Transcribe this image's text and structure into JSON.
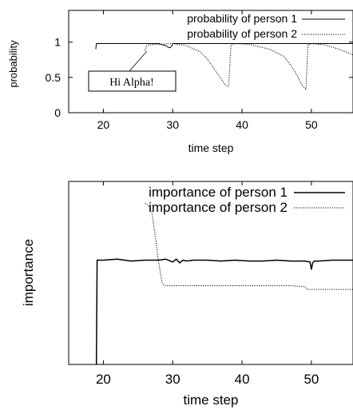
{
  "chart_data": [
    {
      "type": "line",
      "xlabel": "time step",
      "ylabel": "probability",
      "xlim": [
        15,
        56
      ],
      "ylim": [
        0,
        1.45
      ],
      "xticks": [
        "20",
        "30",
        "40",
        "50"
      ],
      "yticks": [
        "0",
        "0.5",
        "1"
      ],
      "legend_position": "top-right",
      "annotation": "Hi Alpha!",
      "series": [
        {
          "name": "probability of person 1",
          "style": "solid",
          "x": [
            18.9,
            19.0,
            28.0,
            28.6,
            29.0,
            29.3,
            29.6,
            29.9,
            30.0,
            56.0
          ],
          "y": [
            0.9,
            0.98,
            0.98,
            0.96,
            0.95,
            0.93,
            0.92,
            0.95,
            0.98,
            0.98
          ]
        },
        {
          "name": "probability of person 2",
          "style": "dotted",
          "x": [
            26.0,
            26.3,
            30.0,
            32.0,
            34.0,
            35.0,
            36.0,
            37.0,
            37.6,
            38.0,
            38.1,
            38.4,
            39.0,
            41.0,
            44.0,
            46.0,
            47.0,
            48.0,
            48.6,
            49.0,
            49.2,
            49.5,
            50.0,
            52.0,
            54.0,
            56.0
          ],
          "y": [
            0.88,
            0.96,
            0.98,
            0.95,
            0.86,
            0.76,
            0.62,
            0.48,
            0.39,
            0.37,
            0.42,
            0.96,
            0.98,
            0.97,
            0.9,
            0.8,
            0.68,
            0.52,
            0.4,
            0.35,
            0.33,
            0.96,
            0.98,
            0.96,
            0.9,
            0.82
          ]
        }
      ]
    },
    {
      "type": "line",
      "xlabel": "time step",
      "ylabel": "importance",
      "xlim": [
        15,
        56
      ],
      "ylim": [
        0,
        1
      ],
      "xticks": [
        "20",
        "30",
        "40",
        "50"
      ],
      "yticks": [],
      "legend_position": "top-right",
      "series": [
        {
          "name": "importance of person 1",
          "style": "solid",
          "x": [
            19.0,
            19.1,
            20.0,
            22.0,
            24.0,
            26.0,
            28.0,
            29.0,
            30.0,
            30.5,
            31.0,
            31.5,
            32.0,
            33.0,
            35.0,
            37.0,
            39.0,
            41.0,
            43.0,
            45.0,
            47.0,
            49.0,
            49.8,
            50.0,
            50.2,
            50.4,
            51.0,
            53.0,
            56.0
          ],
          "y": [
            0.0,
            0.57,
            0.57,
            0.575,
            0.565,
            0.57,
            0.57,
            0.575,
            0.56,
            0.575,
            0.555,
            0.57,
            0.565,
            0.57,
            0.57,
            0.565,
            0.57,
            0.565,
            0.565,
            0.57,
            0.565,
            0.565,
            0.56,
            0.52,
            0.555,
            0.565,
            0.565,
            0.57,
            0.57
          ]
        },
        {
          "name": "importance of person 2",
          "style": "dotted",
          "x": [
            26.0,
            26.5,
            27.0,
            27.5,
            28.0,
            28.5,
            29.0,
            31.0,
            35.0,
            39.0,
            43.0,
            47.0,
            49.0,
            49.5,
            50.0,
            53.0,
            56.0
          ],
          "y": [
            0.88,
            0.87,
            0.83,
            0.7,
            0.55,
            0.44,
            0.43,
            0.43,
            0.43,
            0.43,
            0.43,
            0.43,
            0.425,
            0.41,
            0.41,
            0.41,
            0.41
          ]
        }
      ]
    }
  ]
}
